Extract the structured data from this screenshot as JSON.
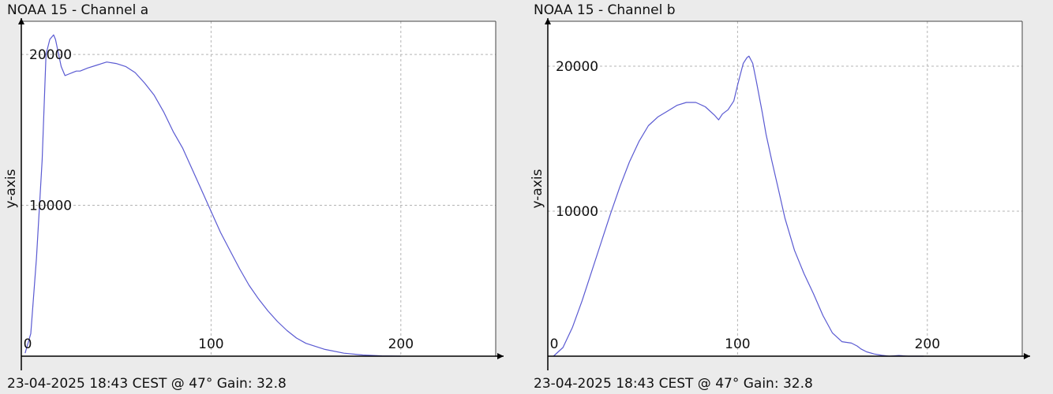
{
  "chart_data": [
    {
      "type": "line",
      "title": "NOAA 15 - Channel a",
      "footer": "23-04-2025 18:43 CEST @ 47° Gain: 32.8",
      "xlabel": "",
      "ylabel": "y-axis",
      "xlim": [
        0,
        250
      ],
      "ylim": [
        0,
        22200
      ],
      "x_ticks": [
        0,
        100,
        200
      ],
      "x_tick_labels": [
        "0",
        "100",
        "200"
      ],
      "y_ticks": [
        10000,
        20000
      ],
      "y_tick_labels": [
        "10000",
        "20000"
      ],
      "grid": true,
      "line_color": "#5a5ad2",
      "series": [
        {
          "x": [
            2,
            5,
            8,
            11,
            13,
            15,
            17,
            18,
            19,
            21,
            23,
            25,
            27,
            29,
            31,
            35,
            40,
            45,
            50,
            55,
            60,
            65,
            70,
            75,
            80,
            85,
            90,
            95,
            100,
            105,
            110,
            115,
            120,
            125,
            130,
            135,
            140,
            145,
            150,
            160,
            170,
            180,
            190,
            200
          ],
          "y": [
            200,
            1500,
            6500,
            13000,
            20000,
            21000,
            21300,
            21000,
            20400,
            19200,
            18600,
            18700,
            18800,
            18900,
            18900,
            19100,
            19300,
            19500,
            19400,
            19200,
            18800,
            18100,
            17300,
            16200,
            14900,
            13800,
            12400,
            11000,
            9600,
            8200,
            7000,
            5800,
            4700,
            3800,
            3000,
            2300,
            1700,
            1200,
            850,
            450,
            200,
            80,
            20,
            0
          ]
        }
      ]
    },
    {
      "type": "line",
      "title": "NOAA 15 - Channel b",
      "footer": "23-04-2025 18:43 CEST @ 47° Gain: 32.8",
      "xlabel": "",
      "ylabel": "y-axis",
      "xlim": [
        0,
        250
      ],
      "ylim": [
        0,
        23100
      ],
      "x_ticks": [
        0,
        100,
        200
      ],
      "x_tick_labels": [
        "0",
        "100",
        "200"
      ],
      "y_ticks": [
        10000,
        20000
      ],
      "y_tick_labels": [
        "10000",
        "20000"
      ],
      "grid": true,
      "line_color": "#5a5ad2",
      "series": [
        {
          "x": [
            3,
            8,
            13,
            18,
            23,
            28,
            33,
            38,
            43,
            48,
            53,
            58,
            63,
            68,
            73,
            78,
            83,
            88,
            90,
            92,
            95,
            98,
            100,
            103,
            105,
            106,
            108,
            110,
            113,
            115,
            118,
            121,
            125,
            130,
            135,
            140,
            145,
            150,
            155,
            160,
            163,
            165,
            168,
            172,
            176,
            180,
            185,
            190,
            195,
            198
          ],
          "y": [
            0,
            600,
            2000,
            3800,
            5800,
            7800,
            9800,
            11700,
            13400,
            14800,
            15900,
            16500,
            16900,
            17300,
            17500,
            17500,
            17200,
            16600,
            16300,
            16700,
            17000,
            17600,
            18700,
            20200,
            20600,
            20700,
            20200,
            18900,
            16800,
            15300,
            13500,
            11800,
            9500,
            7300,
            5700,
            4300,
            2800,
            1600,
            1000,
            900,
            700,
            500,
            300,
            150,
            60,
            0,
            50,
            0,
            0,
            0
          ]
        }
      ]
    }
  ]
}
